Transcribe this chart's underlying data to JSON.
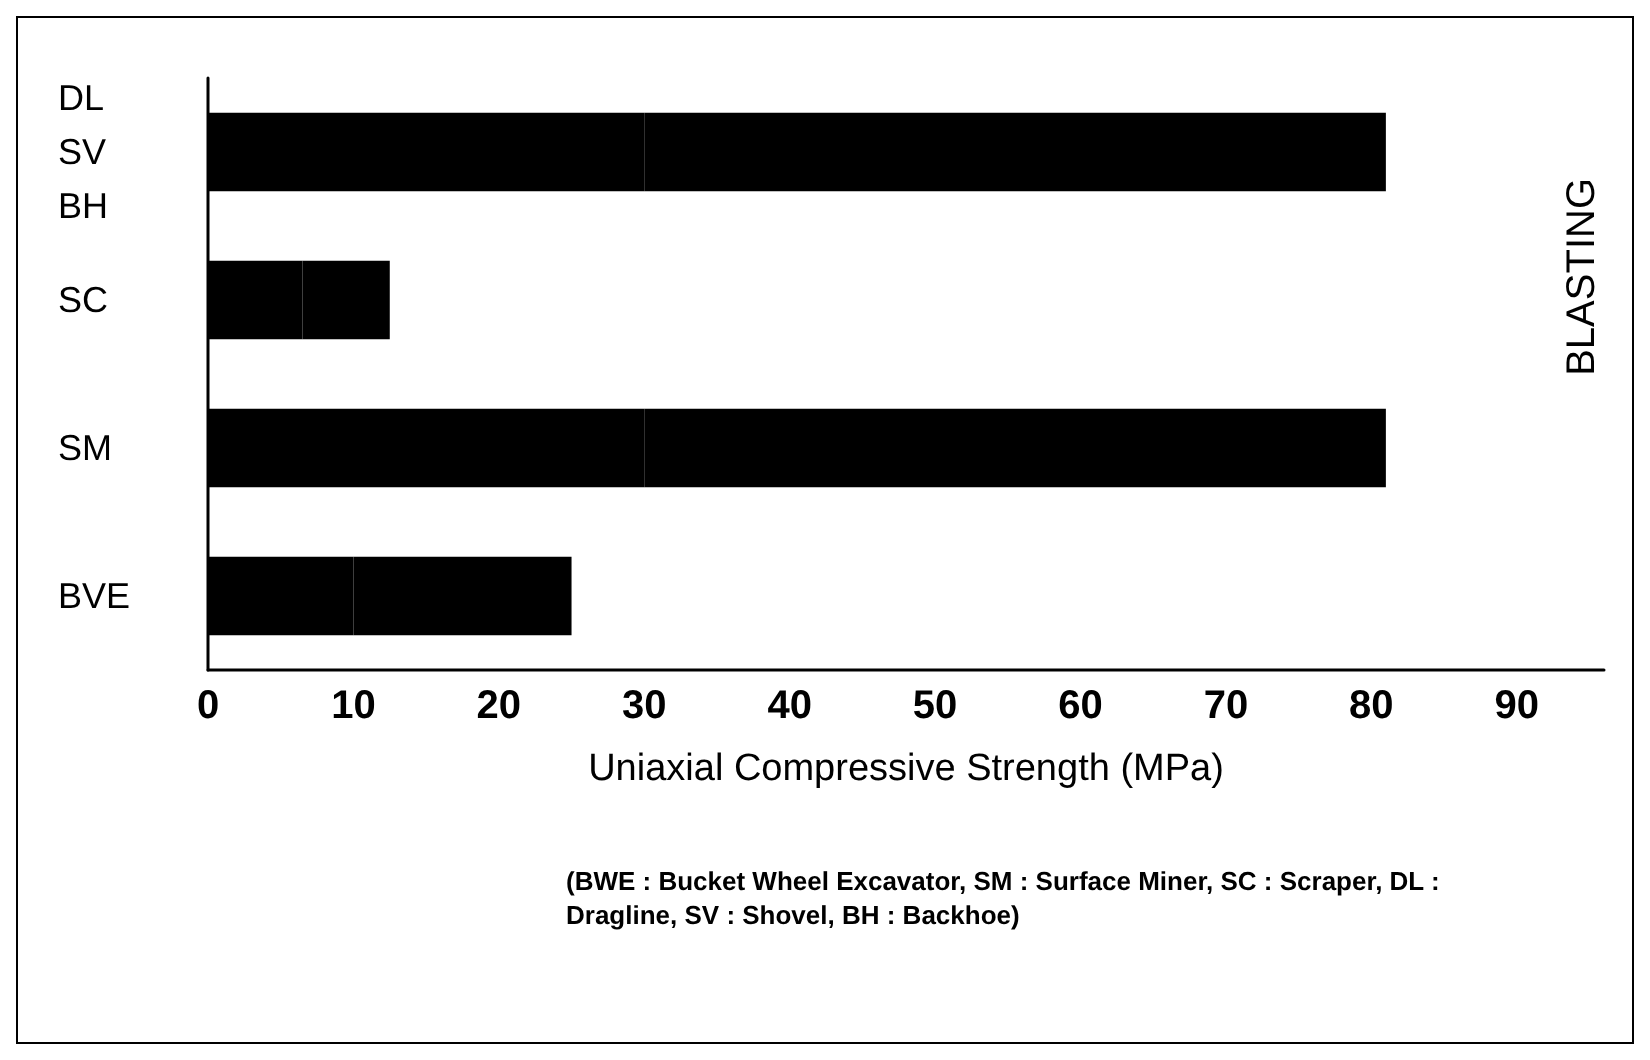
{
  "chart_data": {
    "type": "bar",
    "orientation": "horizontal",
    "stacked": true,
    "categories": [
      "DL\nSV\nBH",
      "SC",
      "SM",
      "BVE"
    ],
    "series": [
      {
        "color": "#000000",
        "values": [
          30,
          6.5,
          30,
          10
        ]
      },
      {
        "color": "#000000",
        "values": [
          51,
          6,
          51,
          15
        ]
      }
    ],
    "xlabel": "Uniaxial Compressive Strength (MPa)",
    "xlim": [
      0,
      96
    ],
    "xticks": [
      0,
      10,
      20,
      30,
      40,
      50,
      60,
      70,
      80,
      90
    ],
    "annotations": [
      "BLASTING",
      "(BWE : Bucket Wheel Excavator, SM : Surface Miner, SC : Scraper, DL : Dragline, SV : Shovel, BH : Backhoe)"
    ]
  }
}
